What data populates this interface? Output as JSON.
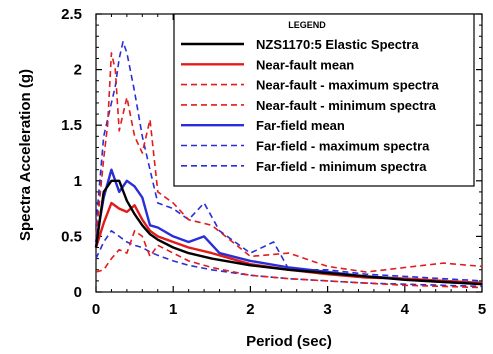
{
  "chart_data": {
    "type": "line",
    "title": "",
    "xlabel": "Period (sec)",
    "ylabel": "Spectra Acceleration (g)",
    "xlim": [
      0,
      5
    ],
    "ylim": [
      0,
      2.5
    ],
    "x_ticks": [
      0,
      1,
      2,
      3,
      4,
      5
    ],
    "y_ticks": [
      0,
      0.5,
      1,
      1.5,
      2,
      2.5
    ],
    "x_tick_labels": [
      "0",
      "1",
      "2",
      "3",
      "4",
      "5"
    ],
    "y_tick_labels": [
      "0",
      "0.5",
      "1",
      "1.5",
      "2",
      "2.5"
    ],
    "grid": false,
    "legend": {
      "title": "LEGEND",
      "position": "top-right"
    },
    "series": [
      {
        "name": "NZS1170:5 Elastic Spectra",
        "color": "#000000",
        "style": "solid",
        "x": [
          0,
          0.1,
          0.2,
          0.3,
          0.4,
          0.5,
          0.6,
          0.7,
          0.8,
          1.0,
          1.2,
          1.5,
          2.0,
          2.5,
          3.0,
          3.5,
          4.0,
          4.5,
          5.0
        ],
        "y": [
          0.4,
          0.9,
          1.0,
          1.0,
          0.82,
          0.7,
          0.6,
          0.52,
          0.47,
          0.4,
          0.35,
          0.3,
          0.24,
          0.2,
          0.17,
          0.14,
          0.11,
          0.09,
          0.07
        ]
      },
      {
        "name": "Near-fault mean",
        "color": "#e21b1b",
        "style": "solid",
        "x": [
          0,
          0.1,
          0.2,
          0.3,
          0.4,
          0.5,
          0.6,
          0.7,
          0.8,
          1.0,
          1.2,
          1.5,
          2.0,
          2.5,
          3.0,
          3.5,
          4.0,
          4.5,
          5.0
        ],
        "y": [
          0.4,
          0.62,
          0.8,
          0.75,
          0.72,
          0.78,
          0.65,
          0.55,
          0.5,
          0.45,
          0.4,
          0.35,
          0.25,
          0.2,
          0.16,
          0.13,
          0.12,
          0.1,
          0.08
        ]
      },
      {
        "name": "Near-fault - maximum spectra",
        "color": "#e21b1b",
        "style": "dashed",
        "x": [
          0,
          0.1,
          0.15,
          0.2,
          0.25,
          0.3,
          0.4,
          0.5,
          0.6,
          0.7,
          0.8,
          1.0,
          1.2,
          1.5,
          2.0,
          2.5,
          3.0,
          3.5,
          4.0,
          4.5,
          5.0
        ],
        "y": [
          0.5,
          1.2,
          1.5,
          2.15,
          2.0,
          1.45,
          1.75,
          1.4,
          1.25,
          1.55,
          0.9,
          0.8,
          0.65,
          0.6,
          0.32,
          0.35,
          0.23,
          0.18,
          0.22,
          0.26,
          0.23
        ]
      },
      {
        "name": "Near-fault - minimum spectra",
        "color": "#e21b1b",
        "style": "dashed",
        "x": [
          0,
          0.1,
          0.2,
          0.3,
          0.4,
          0.5,
          0.6,
          0.7,
          0.8,
          1.0,
          1.2,
          1.5,
          2.0,
          2.5,
          3.0,
          3.5,
          4.0,
          4.5,
          5.0
        ],
        "y": [
          0.18,
          0.2,
          0.3,
          0.38,
          0.35,
          0.55,
          0.5,
          0.32,
          0.42,
          0.35,
          0.28,
          0.22,
          0.15,
          0.12,
          0.1,
          0.08,
          0.06,
          0.05,
          0.04
        ]
      },
      {
        "name": "Far-field mean",
        "color": "#2a2ed8",
        "style": "solid",
        "x": [
          0,
          0.1,
          0.2,
          0.3,
          0.4,
          0.5,
          0.6,
          0.7,
          0.8,
          1.0,
          1.2,
          1.4,
          1.6,
          2.0,
          2.5,
          3.0,
          3.5,
          4.0,
          4.5,
          5.0
        ],
        "y": [
          0.45,
          0.85,
          1.1,
          0.9,
          1.0,
          0.95,
          0.85,
          0.6,
          0.58,
          0.5,
          0.45,
          0.5,
          0.35,
          0.28,
          0.22,
          0.18,
          0.14,
          0.12,
          0.1,
          0.08
        ]
      },
      {
        "name": "Far-field - maximum spectra",
        "color": "#2a2ed8",
        "style": "dashed",
        "x": [
          0,
          0.1,
          0.2,
          0.25,
          0.3,
          0.35,
          0.4,
          0.5,
          0.6,
          0.7,
          0.8,
          1.0,
          1.2,
          1.4,
          1.6,
          2.0,
          2.3,
          2.5,
          3.0,
          3.5,
          4.0,
          4.5,
          5.0
        ],
        "y": [
          0.6,
          1.4,
          1.7,
          1.85,
          2.1,
          2.25,
          2.15,
          1.8,
          1.4,
          1.1,
          0.8,
          0.75,
          0.65,
          0.8,
          0.55,
          0.35,
          0.45,
          0.2,
          0.2,
          0.16,
          0.14,
          0.12,
          0.1
        ]
      },
      {
        "name": "Far-field - minimum spectra",
        "color": "#2a2ed8",
        "style": "dashed",
        "x": [
          0,
          0.1,
          0.2,
          0.3,
          0.4,
          0.5,
          0.6,
          0.7,
          0.8,
          1.0,
          1.2,
          1.5,
          2.0,
          2.5,
          3.0,
          3.5,
          4.0,
          4.5,
          5.0
        ],
        "y": [
          0.3,
          0.45,
          0.55,
          0.5,
          0.45,
          0.42,
          0.4,
          0.36,
          0.33,
          0.28,
          0.24,
          0.2,
          0.15,
          0.12,
          0.1,
          0.08,
          0.07,
          0.06,
          0.05
        ]
      }
    ]
  }
}
